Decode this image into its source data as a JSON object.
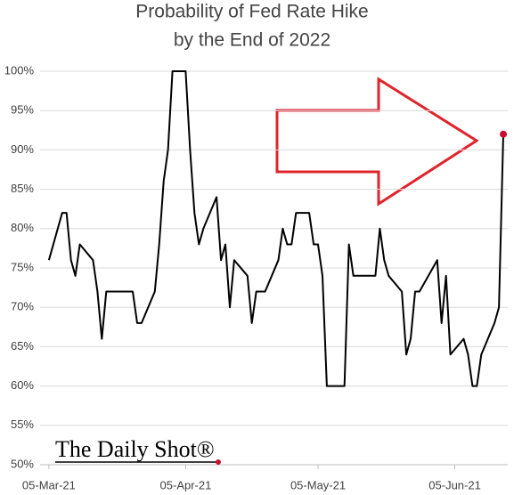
{
  "chart_data": {
    "type": "line",
    "title": "Probability of Fed Rate Hike",
    "subtitle": "by the End of 2022",
    "brand": "The Daily Shot®",
    "color": "#000000",
    "last_point_color": "#c8102e",
    "grid": true,
    "x": [
      "05-Mar-21",
      "08-Mar-21",
      "09-Mar-21",
      "10-Mar-21",
      "11-Mar-21",
      "12-Mar-21",
      "15-Mar-21",
      "16-Mar-21",
      "17-Mar-21",
      "18-Mar-21",
      "24-Mar-21",
      "25-Mar-21",
      "26-Mar-21",
      "29-Mar-21",
      "30-Mar-21",
      "31-Mar-21",
      "01-Apr-21",
      "02-Apr-21",
      "05-Apr-21",
      "06-Apr-21",
      "07-Apr-21",
      "08-Apr-21",
      "09-Apr-21",
      "12-Apr-21",
      "13-Apr-21",
      "14-Apr-21",
      "15-Apr-21",
      "16-Apr-21",
      "19-Apr-21",
      "20-Apr-21",
      "21-Apr-21",
      "23-Apr-21",
      "26-Apr-21",
      "27-Apr-21",
      "28-Apr-21",
      "29-Apr-21",
      "30-Apr-21",
      "03-May-21",
      "04-May-21",
      "05-May-21",
      "06-May-21",
      "07-May-21",
      "10-May-21",
      "11-May-21",
      "12-May-21",
      "13-May-21",
      "18-May-21",
      "19-May-21",
      "20-May-21",
      "21-May-21",
      "24-May-21",
      "25-May-21",
      "26-May-21",
      "27-May-21",
      "28-May-21",
      "01-Jun-21",
      "02-Jun-21",
      "03-Jun-21",
      "04-Jun-21",
      "07-Jun-21",
      "08-Jun-21",
      "09-Jun-21",
      "10-Jun-21",
      "11-Jun-21",
      "14-Jun-21",
      "15-Jun-21",
      "16-Jun-21"
    ],
    "values": [
      76,
      82,
      82,
      76,
      74,
      78,
      76,
      72,
      66,
      72,
      72,
      68,
      68,
      72,
      78,
      86,
      90,
      100,
      100,
      90,
      82,
      78,
      80,
      84,
      76,
      78,
      70,
      76,
      74,
      68,
      72,
      72,
      76,
      80,
      78,
      78,
      82,
      82,
      78,
      78,
      74,
      60,
      60,
      60,
      78,
      74,
      74,
      80,
      76,
      74,
      72,
      64,
      66,
      72,
      72,
      76,
      68,
      74,
      64,
      66,
      64,
      60,
      60,
      64,
      68,
      70,
      92
    ],
    "xlim": [
      "03-Mar-21",
      "17-Jun-21"
    ],
    "xticks": [
      "05-Mar-21",
      "05-Apr-21",
      "05-May-21",
      "05-Jun-21"
    ],
    "ylim": [
      50,
      100
    ],
    "yticks": [
      {
        "value": 50,
        "label": "50%"
      },
      {
        "value": 55,
        "label": "55%"
      },
      {
        "value": 60,
        "label": "60%"
      },
      {
        "value": 65,
        "label": "65%"
      },
      {
        "value": 70,
        "label": "70%"
      },
      {
        "value": 75,
        "label": "75%"
      },
      {
        "value": 80,
        "label": "80%"
      },
      {
        "value": 85,
        "label": "85%"
      },
      {
        "value": 90,
        "label": "90%"
      },
      {
        "value": 95,
        "label": "95%"
      },
      {
        "value": 100,
        "label": "100%"
      }
    ]
  }
}
